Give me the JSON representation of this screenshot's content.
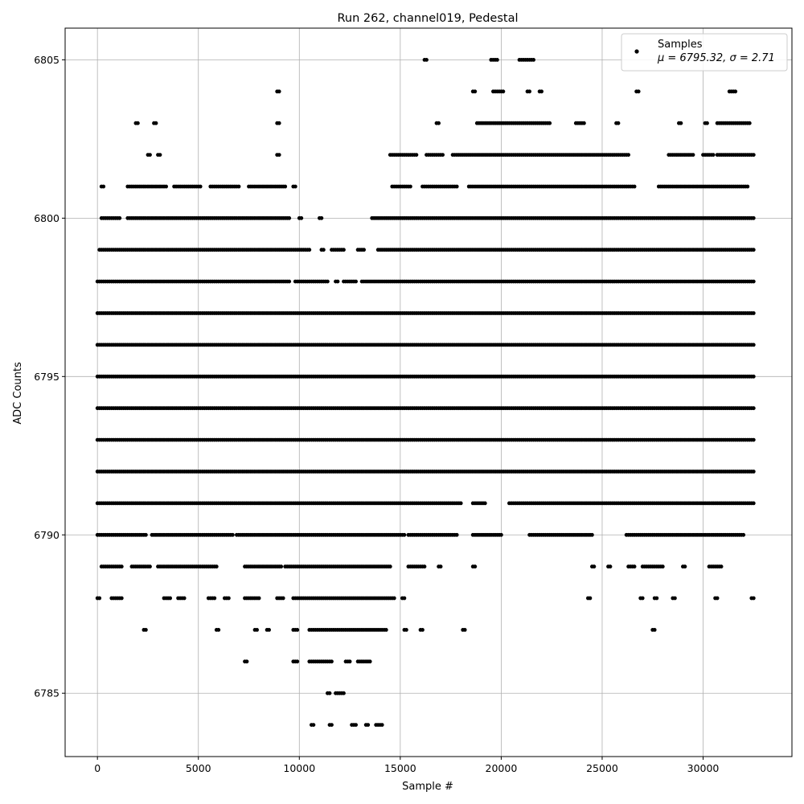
{
  "chart_data": {
    "type": "scatter",
    "title": "Run 262, channel019, Pedestal",
    "xlabel": "Sample #",
    "ylabel": "ADC Counts",
    "xlim": [
      -1600,
      34400
    ],
    "ylim": [
      6783,
      6806
    ],
    "grid": true,
    "legend_position": "top-right",
    "marker_color": "#000000",
    "x_ticks": [
      0,
      5000,
      10000,
      15000,
      20000,
      25000,
      30000
    ],
    "y_ticks": [
      6785,
      6790,
      6795,
      6800,
      6805
    ],
    "series": [
      {
        "name": "Samples",
        "legend_stats": "μ = 6795.32, σ = 2.71",
        "mean": 6795.32,
        "sigma": 2.71,
        "x_max": 32500,
        "level_ranges": [
          {
            "y": 6805,
            "ranges": [
              [
                16200,
                16300
              ],
              [
                19500,
                19800
              ],
              [
                20900,
                21600
              ]
            ]
          },
          {
            "y": 6804,
            "ranges": [
              [
                8900,
                9000
              ],
              [
                18600,
                18700
              ],
              [
                19600,
                20100
              ],
              [
                21300,
                21400
              ],
              [
                21900,
                22000
              ],
              [
                26700,
                26800
              ],
              [
                31300,
                31600
              ]
            ]
          },
          {
            "y": 6803,
            "ranges": [
              [
                1900,
                2000
              ],
              [
                2800,
                2900
              ],
              [
                8900,
                9000
              ],
              [
                16800,
                16900
              ],
              [
                18800,
                22400
              ],
              [
                23700,
                24100
              ],
              [
                25700,
                25800
              ],
              [
                28800,
                28900
              ],
              [
                30100,
                30200
              ],
              [
                30700,
                32300
              ]
            ]
          },
          {
            "y": 6802,
            "ranges": [
              [
                2500,
                2600
              ],
              [
                3000,
                3100
              ],
              [
                8900,
                9000
              ],
              [
                14500,
                15800
              ],
              [
                16300,
                17100
              ],
              [
                17600,
                26300
              ],
              [
                28300,
                29500
              ],
              [
                30000,
                30500
              ],
              [
                30700,
                32500
              ]
            ]
          },
          {
            "y": 6801,
            "ranges": [
              [
                200,
                300
              ],
              [
                1500,
                3400
              ],
              [
                3800,
                5100
              ],
              [
                5600,
                7000
              ],
              [
                7500,
                9300
              ],
              [
                9700,
                9800
              ],
              [
                14600,
                15500
              ],
              [
                16100,
                17800
              ],
              [
                18400,
                26600
              ],
              [
                27800,
                32200
              ]
            ]
          },
          {
            "y": 6800,
            "ranges": [
              [
                200,
                1100
              ],
              [
                1500,
                9500
              ],
              [
                10000,
                10100
              ],
              [
                11000,
                11100
              ],
              [
                13600,
                32500
              ]
            ]
          },
          {
            "y": 6799,
            "ranges": [
              [
                100,
                10500
              ],
              [
                11100,
                11200
              ],
              [
                11600,
                12200
              ],
              [
                12900,
                13200
              ],
              [
                13900,
                32500
              ]
            ]
          },
          {
            "y": 6798,
            "ranges": [
              [
                0,
                9500
              ],
              [
                9800,
                11400
              ],
              [
                11800,
                11900
              ],
              [
                12200,
                12800
              ],
              [
                13100,
                32500
              ]
            ]
          },
          {
            "y": 6797,
            "ranges": [
              [
                0,
                32500
              ]
            ]
          },
          {
            "y": 6796,
            "ranges": [
              [
                0,
                32500
              ]
            ]
          },
          {
            "y": 6795,
            "ranges": [
              [
                0,
                32500
              ]
            ]
          },
          {
            "y": 6794,
            "ranges": [
              [
                0,
                32500
              ]
            ]
          },
          {
            "y": 6793,
            "ranges": [
              [
                0,
                32500
              ]
            ]
          },
          {
            "y": 6792,
            "ranges": [
              [
                0,
                32500
              ]
            ]
          },
          {
            "y": 6791,
            "ranges": [
              [
                0,
                18000
              ],
              [
                18600,
                19200
              ],
              [
                20400,
                32500
              ]
            ]
          },
          {
            "y": 6790,
            "ranges": [
              [
                0,
                2400
              ],
              [
                2700,
                6700
              ],
              [
                6900,
                15200
              ],
              [
                15400,
                17800
              ],
              [
                18600,
                20000
              ],
              [
                21400,
                24500
              ],
              [
                26200,
                32000
              ]
            ]
          },
          {
            "y": 6789,
            "ranges": [
              [
                200,
                1200
              ],
              [
                1700,
                2600
              ],
              [
                3000,
                5900
              ],
              [
                7300,
                9100
              ],
              [
                9300,
                14500
              ],
              [
                15400,
                16200
              ],
              [
                16900,
                17000
              ],
              [
                18600,
                18700
              ],
              [
                24500,
                24600
              ],
              [
                25300,
                25400
              ],
              [
                26300,
                26600
              ],
              [
                27000,
                28000
              ],
              [
                29000,
                29100
              ],
              [
                30300,
                30900
              ]
            ]
          },
          {
            "y": 6788,
            "ranges": [
              [
                0,
                100
              ],
              [
                700,
                1200
              ],
              [
                3300,
                3600
              ],
              [
                4000,
                4300
              ],
              [
                5500,
                5800
              ],
              [
                6300,
                6500
              ],
              [
                7300,
                8000
              ],
              [
                8900,
                9200
              ],
              [
                9700,
                14700
              ],
              [
                15100,
                15200
              ],
              [
                24300,
                24400
              ],
              [
                26900,
                27000
              ],
              [
                27600,
                27700
              ],
              [
                28500,
                28600
              ],
              [
                30600,
                30700
              ],
              [
                32400,
                32500
              ]
            ]
          },
          {
            "y": 6787,
            "ranges": [
              [
                2300,
                2400
              ],
              [
                5900,
                6000
              ],
              [
                7800,
                7900
              ],
              [
                8400,
                8500
              ],
              [
                9700,
                9900
              ],
              [
                10500,
                14300
              ],
              [
                15200,
                15300
              ],
              [
                16000,
                16100
              ],
              [
                18100,
                18200
              ],
              [
                27500,
                27600
              ]
            ]
          },
          {
            "y": 6786,
            "ranges": [
              [
                7300,
                7400
              ],
              [
                9700,
                9900
              ],
              [
                10500,
                11600
              ],
              [
                12300,
                12500
              ],
              [
                12900,
                13500
              ]
            ]
          },
          {
            "y": 6785,
            "ranges": [
              [
                11400,
                11500
              ],
              [
                11800,
                11900
              ],
              [
                12000,
                12200
              ]
            ]
          },
          {
            "y": 6784,
            "ranges": [
              [
                10600,
                10700
              ],
              [
                11500,
                11600
              ],
              [
                12600,
                12800
              ],
              [
                13300,
                13400
              ],
              [
                13800,
                14100
              ]
            ]
          }
        ]
      }
    ]
  }
}
